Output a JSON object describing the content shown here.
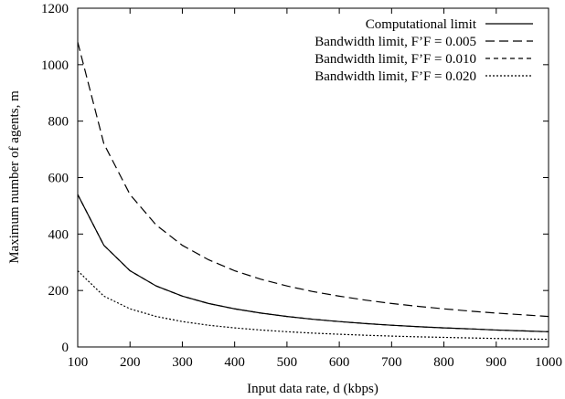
{
  "chart_data": {
    "type": "line",
    "xlabel": "Input data rate, d (kbps)",
    "ylabel": "Maximum number of agents, m",
    "xlim": [
      100,
      1000
    ],
    "ylim": [
      0,
      1200
    ],
    "xticks": [
      100,
      200,
      300,
      400,
      500,
      600,
      700,
      800,
      900,
      1000
    ],
    "yticks": [
      0,
      200,
      400,
      600,
      800,
      1000,
      1200
    ],
    "grid": false,
    "legend_position": "top-right",
    "x": [
      100,
      150,
      200,
      250,
      300,
      350,
      400,
      450,
      500,
      550,
      600,
      650,
      700,
      750,
      800,
      850,
      900,
      950,
      1000
    ],
    "series": [
      {
        "name": "Computational limit",
        "dash": "solid",
        "values": [
          540,
          360,
          270,
          216,
          180,
          154,
          135,
          120,
          108,
          98,
          90,
          83,
          77,
          72,
          67.5,
          64,
          60,
          57,
          54
        ]
      },
      {
        "name": "Bandwidth limit, F’F = 0.005",
        "dash": "long-dash",
        "values": [
          1080,
          720,
          540,
          432,
          360,
          309,
          270,
          240,
          216,
          196,
          180,
          166,
          154,
          144,
          135,
          127,
          120,
          114,
          108
        ]
      },
      {
        "name": "Bandwidth limit, F’F = 0.010",
        "dash": "short-dash",
        "values": [
          540,
          360,
          270,
          216,
          180,
          154,
          135,
          120,
          108,
          98,
          90,
          83,
          77,
          72,
          67.5,
          64,
          60,
          57,
          54
        ]
      },
      {
        "name": "Bandwidth limit, F’F = 0.020",
        "dash": "dotted",
        "values": [
          270,
          180,
          135,
          108,
          90,
          77,
          67.5,
          60,
          54,
          49,
          45,
          41.5,
          38.5,
          36,
          34,
          32,
          30,
          28.5,
          27
        ]
      }
    ]
  }
}
